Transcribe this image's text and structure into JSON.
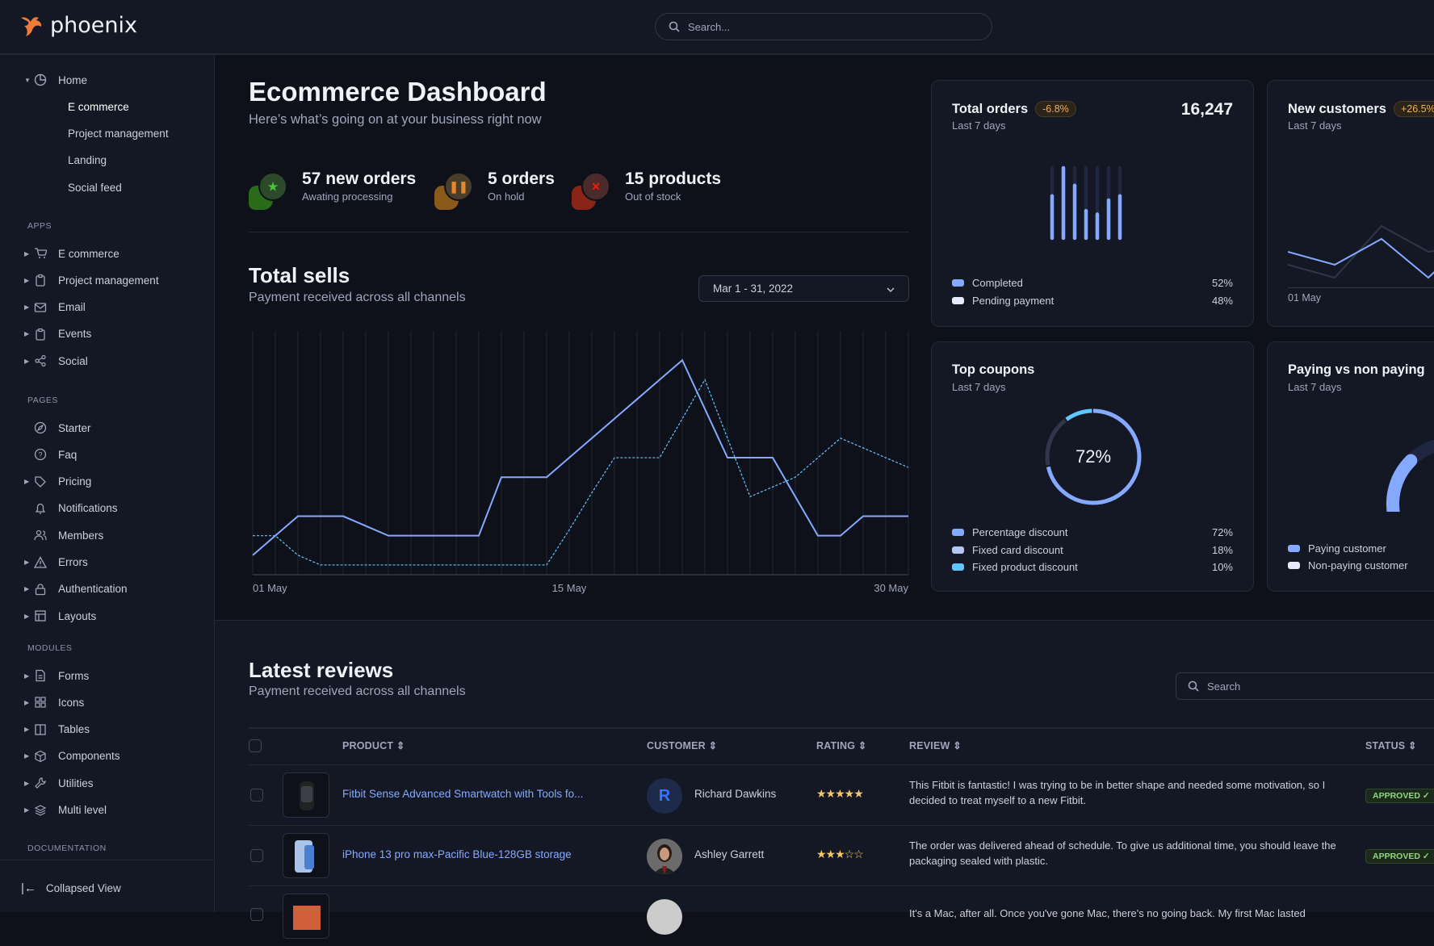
{
  "app": {
    "name": "phoenix",
    "search_placeholder": "Search..."
  },
  "colors": {
    "accent": "#85a9ff",
    "cyan": "#60c6ff",
    "warning": "#f4ad5a",
    "success": "#90d67f",
    "danger": "#ec1f00"
  },
  "sidebar": {
    "home": {
      "label": "Home",
      "icon": "pie-chart-icon",
      "children": [
        "E commerce",
        "Project management",
        "Landing",
        "Social feed"
      ],
      "active": "E commerce"
    },
    "sections": [
      {
        "title": "APPS",
        "items": [
          {
            "label": "E commerce",
            "icon": "cart-icon",
            "expandable": true
          },
          {
            "label": "Project management",
            "icon": "clipboard-icon",
            "expandable": true
          },
          {
            "label": "Email",
            "icon": "mail-icon",
            "expandable": true
          },
          {
            "label": "Events",
            "icon": "clipboard-icon",
            "expandable": true
          },
          {
            "label": "Social",
            "icon": "share-icon",
            "expandable": true
          }
        ]
      },
      {
        "title": "PAGES",
        "items": [
          {
            "label": "Starter",
            "icon": "compass-icon",
            "expandable": false
          },
          {
            "label": "Faq",
            "icon": "help-circle-icon",
            "expandable": false
          },
          {
            "label": "Pricing",
            "icon": "tag-icon",
            "expandable": true
          },
          {
            "label": "Notifications",
            "icon": "bell-icon",
            "expandable": false
          },
          {
            "label": "Members",
            "icon": "users-icon",
            "expandable": false
          },
          {
            "label": "Errors",
            "icon": "alert-triangle-icon",
            "expandable": true
          },
          {
            "label": "Authentication",
            "icon": "lock-icon",
            "expandable": true
          },
          {
            "label": "Layouts",
            "icon": "layout-icon",
            "expandable": true
          }
        ]
      },
      {
        "title": "MODULES",
        "items": [
          {
            "label": "Forms",
            "icon": "file-text-icon",
            "expandable": true
          },
          {
            "label": "Icons",
            "icon": "grid-icon",
            "expandable": true
          },
          {
            "label": "Tables",
            "icon": "columns-icon",
            "expandable": true
          },
          {
            "label": "Components",
            "icon": "package-icon",
            "expandable": true
          },
          {
            "label": "Utilities",
            "icon": "tool-icon",
            "expandable": true
          },
          {
            "label": "Multi level",
            "icon": "layers-icon",
            "expandable": true
          }
        ]
      },
      {
        "title": "DOCUMENTATION",
        "items": []
      }
    ],
    "collapse_label": "Collapsed View"
  },
  "page": {
    "title": "Ecommerce Dashboard",
    "subtitle": "Here’s what’s going on at your business right now"
  },
  "stats": [
    {
      "title": "57 new orders",
      "subtitle": "Awating processing",
      "icon": "star-icon",
      "color": "#4fc23a"
    },
    {
      "title": "5 orders",
      "subtitle": "On hold",
      "icon": "pause-icon",
      "color": "#e5872b"
    },
    {
      "title": "15 products",
      "subtitle": "Out of stock",
      "icon": "x-icon",
      "color": "#ec1f00"
    }
  ],
  "total_sells": {
    "title": "Total sells",
    "subtitle": "Payment received across all channels",
    "date_range": "Mar 1 - 31, 2022"
  },
  "chart_data": [
    {
      "type": "line",
      "x": [
        "01 May",
        "02 May",
        "03 May",
        "04 May",
        "05 May",
        "06 May",
        "07 May",
        "08 May",
        "09 May",
        "10 May",
        "11 May",
        "12 May",
        "13 May",
        "14 May",
        "15 May",
        "16 May",
        "17 May",
        "18 May",
        "19 May",
        "20 May",
        "21 May",
        "22 May",
        "23 May",
        "24 May",
        "25 May",
        "26 May",
        "27 May",
        "28 May",
        "29 May",
        "30 May"
      ],
      "x_tick_labels": [
        "01 May",
        "15 May",
        "30 May"
      ],
      "series": [
        {
          "style": "solid",
          "color": "#85a9ff",
          "values": [
            10,
            20,
            30,
            30,
            30,
            25,
            20,
            20,
            20,
            20,
            20,
            50,
            50,
            50,
            60,
            70,
            80,
            90,
            100,
            110,
            85,
            60,
            60,
            60,
            40,
            20,
            20,
            30,
            30,
            30
          ]
        },
        {
          "style": "dashed",
          "color": "#60c6ff",
          "values": [
            20,
            20,
            10,
            5,
            5,
            5,
            5,
            5,
            5,
            5,
            5,
            5,
            5,
            5,
            23,
            42,
            60,
            60,
            60,
            80,
            100,
            70,
            40,
            45,
            50,
            60,
            70,
            65,
            60,
            55
          ]
        }
      ],
      "grid": "vertical",
      "ylim": [
        0,
        125
      ]
    },
    {
      "type": "bar",
      "title": "Total orders",
      "values": [
        0.6,
        1.0,
        0.75,
        0.39,
        0.34,
        0.54,
        0.6
      ],
      "ylim": [
        0,
        1
      ]
    },
    {
      "type": "line",
      "title": "New customers",
      "x_tick_labels": [
        "01 May"
      ],
      "series": [
        {
          "color": "#85a9ff",
          "values": [
            55,
            50,
            60,
            45,
            62
          ]
        },
        {
          "color": "#31374a",
          "values": [
            50,
            45,
            65,
            55,
            58
          ]
        }
      ]
    },
    {
      "type": "pie",
      "title": "Top coupons",
      "center_label": "72%",
      "categories": [
        "Percentage discount",
        "Fixed card discount",
        "Fixed product discount"
      ],
      "values": [
        72,
        18,
        10
      ]
    },
    {
      "type": "pie",
      "title": "Paying vs non paying",
      "categories": [
        "Paying customer",
        "Non-paying customer"
      ],
      "values": [
        30,
        70
      ]
    }
  ],
  "cards": {
    "total_orders": {
      "title": "Total orders",
      "badge": "-6.8%",
      "subtitle": "Last 7 days",
      "value": "16,247",
      "legend": [
        {
          "label": "Completed",
          "value": "52%",
          "color": "#85a9ff"
        },
        {
          "label": "Pending payment",
          "value": "48%",
          "color": "#e5ebff"
        }
      ]
    },
    "new_customers": {
      "title": "New customers",
      "badge": "+26.5%",
      "subtitle": "Last 7 days",
      "x_label": "01 May"
    },
    "top_coupons": {
      "title": "Top coupons",
      "subtitle": "Last 7 days",
      "center": "72%",
      "legend": [
        {
          "label": "Percentage discount",
          "value": "72%",
          "color": "#85a9ff"
        },
        {
          "label": "Fixed card discount",
          "value": "18%",
          "color": "#b3c5f5"
        },
        {
          "label": "Fixed product discount",
          "value": "10%",
          "color": "#60c6ff"
        }
      ]
    },
    "paying": {
      "title": "Paying vs non paying",
      "subtitle": "Last 7 days",
      "legend": [
        {
          "label": "Paying customer",
          "color": "#85a9ff"
        },
        {
          "label": "Non-paying customer",
          "color": "#e5ebff"
        }
      ]
    }
  },
  "reviews": {
    "title": "Latest reviews",
    "subtitle": "Payment received across all channels",
    "search_placeholder": "Search",
    "columns": [
      "PRODUCT",
      "CUSTOMER",
      "RATING",
      "REVIEW",
      "STATUS"
    ],
    "rows": [
      {
        "product": "Fitbit Sense Advanced Smartwatch with Tools fo...",
        "customer": "Richard Dawkins",
        "avatar_initial": "R",
        "rating": 5,
        "review": "This Fitbit is fantastic! I was trying to be in better shape and needed some motivation, so I decided to treat myself to a new Fitbit.",
        "status": "APPROVED"
      },
      {
        "product": "iPhone 13 pro max-Pacific Blue-128GB storage",
        "customer": "Ashley Garrett",
        "rating": 3,
        "review": "The order was delivered ahead of schedule. To give us additional time, you should leave the packaging sealed with plastic.",
        "status": "APPROVED"
      },
      {
        "review": "It's a Mac, after all. Once you've gone Mac, there's no going back. My first Mac lasted"
      }
    ]
  }
}
